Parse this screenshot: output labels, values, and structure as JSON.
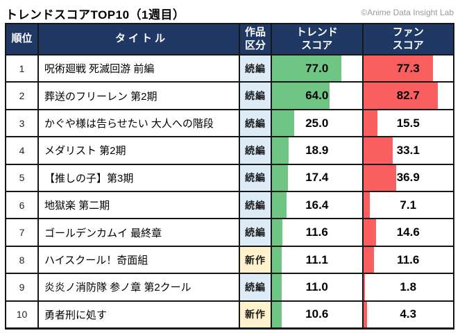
{
  "page": {
    "title": "トレンドスコアTOP10（1週目）",
    "credit": "©Anime Data Insight Lab"
  },
  "colors": {
    "header_bg": "#1F3864",
    "header_text": "#ffffff",
    "sequel_bg": "#DDEBF7",
    "new_bg": "#FFF2CC",
    "trend_bar": "#6EC584",
    "fan_bar": "#FA5F5F",
    "grid": "#161616"
  },
  "table": {
    "headers": {
      "rank": "順位",
      "title": "タイトル",
      "category": [
        "作品",
        "区分"
      ],
      "trend": [
        "トレンド",
        "スコア"
      ],
      "fan": [
        "ファン",
        "スコア"
      ]
    },
    "rows": [
      {
        "rank": "1",
        "title": "呪術廻戦 死滅回游 前編",
        "category": "続編",
        "trend": 77.0,
        "trend_label": "77.0",
        "fan": 77.3,
        "fan_label": "77.3"
      },
      {
        "rank": "2",
        "title": "葬送のフリーレン 第2期",
        "category": "続編",
        "trend": 64.0,
        "trend_label": "64.0",
        "fan": 82.7,
        "fan_label": "82.7"
      },
      {
        "rank": "3",
        "title": "かぐや様は告らせたい 大人への階段",
        "category": "続編",
        "trend": 25.0,
        "trend_label": "25.0",
        "fan": 15.5,
        "fan_label": "15.5"
      },
      {
        "rank": "4",
        "title": "メダリスト 第2期",
        "category": "続編",
        "trend": 18.9,
        "trend_label": "18.9",
        "fan": 33.1,
        "fan_label": "33.1"
      },
      {
        "rank": "5",
        "title": "【推しの子】第3期",
        "category": "続編",
        "trend": 17.4,
        "trend_label": "17.4",
        "fan": 36.9,
        "fan_label": "36.9"
      },
      {
        "rank": "6",
        "title": "地獄楽 第二期",
        "category": "続編",
        "trend": 16.4,
        "trend_label": "16.4",
        "fan": 7.1,
        "fan_label": "7.1"
      },
      {
        "rank": "7",
        "title": "ゴールデンカムイ 最終章",
        "category": "続編",
        "trend": 11.6,
        "trend_label": "11.6",
        "fan": 14.6,
        "fan_label": "14.6"
      },
      {
        "rank": "8",
        "title": "ハイスクール！奇面組",
        "category": "新作",
        "trend": 11.1,
        "trend_label": "11.1",
        "fan": 11.6,
        "fan_label": "11.6"
      },
      {
        "rank": "9",
        "title": "炎炎ノ消防隊 参ノ章 第2クール",
        "category": "続編",
        "trend": 11.0,
        "trend_label": "11.0",
        "fan": 1.8,
        "fan_label": "1.8"
      },
      {
        "rank": "10",
        "title": "勇者刑に処す",
        "category": "新作",
        "trend": 10.6,
        "trend_label": "10.6",
        "fan": 4.3,
        "fan_label": "4.3"
      }
    ]
  },
  "chart_data": {
    "type": "table",
    "title": "トレンドスコアTOP10（1週目）",
    "columns": [
      "順位",
      "タイトル",
      "作品区分",
      "トレンドスコア",
      "ファンスコア"
    ],
    "bar_scale": [
      0,
      100
    ],
    "legend": {
      "trend_bar_color": "#6EC584",
      "fan_bar_color": "#FA5F5F"
    },
    "rows": [
      {
        "rank": 1,
        "title": "呪術廻戦 死滅回游 前編",
        "category": "続編",
        "trend_score": 77.0,
        "fan_score": 77.3
      },
      {
        "rank": 2,
        "title": "葬送のフリーレン 第2期",
        "category": "続編",
        "trend_score": 64.0,
        "fan_score": 82.7
      },
      {
        "rank": 3,
        "title": "かぐや様は告らせたい 大人への階段",
        "category": "続編",
        "trend_score": 25.0,
        "fan_score": 15.5
      },
      {
        "rank": 4,
        "title": "メダリスト 第2期",
        "category": "続編",
        "trend_score": 18.9,
        "fan_score": 33.1
      },
      {
        "rank": 5,
        "title": "【推しの子】第3期",
        "category": "続編",
        "trend_score": 17.4,
        "fan_score": 36.9
      },
      {
        "rank": 6,
        "title": "地獄楽 第二期",
        "category": "続編",
        "trend_score": 16.4,
        "fan_score": 7.1
      },
      {
        "rank": 7,
        "title": "ゴールデンカムイ 最終章",
        "category": "続編",
        "trend_score": 11.6,
        "fan_score": 14.6
      },
      {
        "rank": 8,
        "title": "ハイスクール！奇面組",
        "category": "新作",
        "trend_score": 11.1,
        "fan_score": 11.6
      },
      {
        "rank": 9,
        "title": "炎炎ノ消防隊 参ノ章 第2クール",
        "category": "続編",
        "trend_score": 11.0,
        "fan_score": 1.8
      },
      {
        "rank": 10,
        "title": "勇者刑に処す",
        "category": "新作",
        "trend_score": 10.6,
        "fan_score": 4.3
      }
    ]
  }
}
